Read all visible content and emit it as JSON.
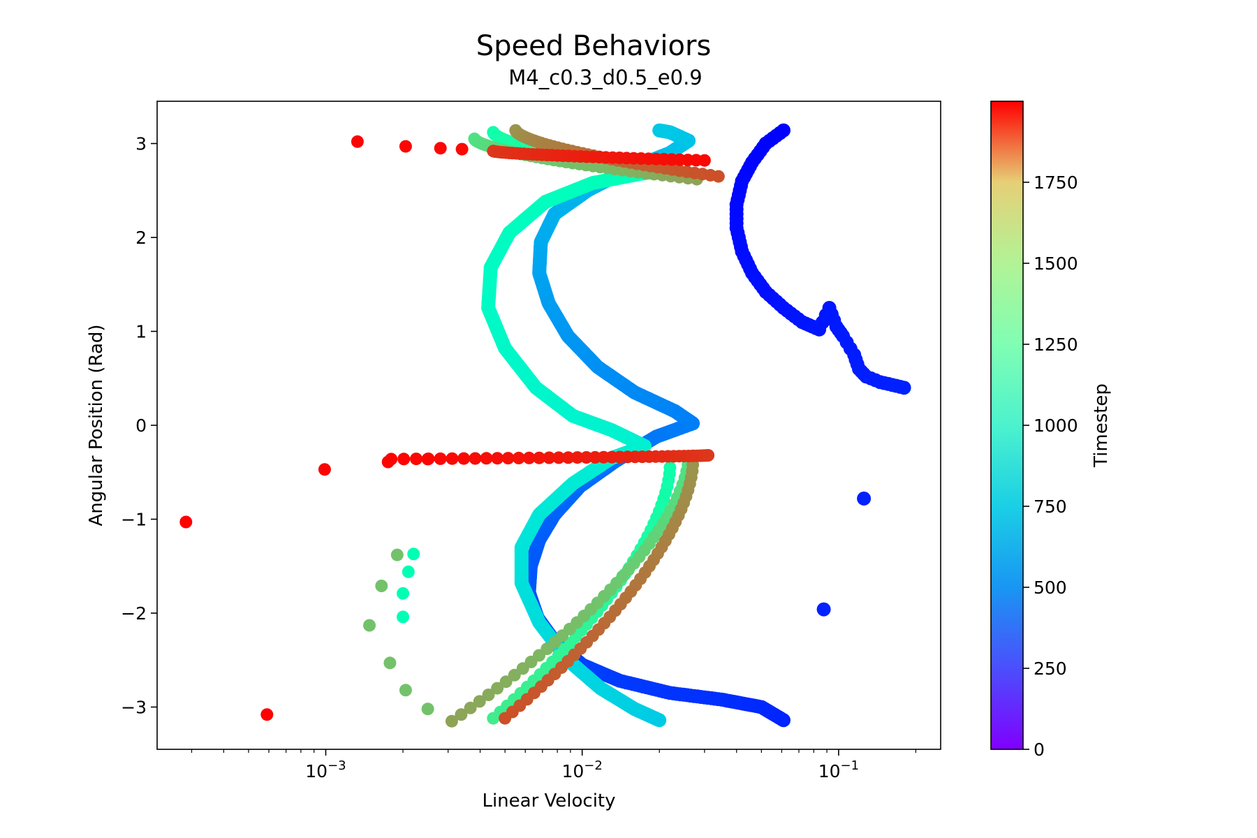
{
  "chart_data": {
    "type": "scatter",
    "title": "Speed Behaviors",
    "subtitle": "M4_c0.3_d0.5_e0.9",
    "xlabel": "Linear Velocity",
    "ylabel": "Angular Position (Rad)",
    "xscale": "log",
    "xlim": [
      0.00022,
      0.25
    ],
    "ylim": [
      -3.45,
      3.45
    ],
    "x_ticks": [
      {
        "value": 0.001,
        "base": "10",
        "exp": "−3"
      },
      {
        "value": 0.01,
        "base": "10",
        "exp": "−2"
      },
      {
        "value": 0.1,
        "base": "10",
        "exp": "−1"
      }
    ],
    "y_ticks": [
      {
        "value": -3,
        "label": "−3"
      },
      {
        "value": -2,
        "label": "−2"
      },
      {
        "value": -1,
        "label": "−1"
      },
      {
        "value": 0,
        "label": "0"
      },
      {
        "value": 1,
        "label": "1"
      },
      {
        "value": 2,
        "label": "2"
      },
      {
        "value": 3,
        "label": "3"
      }
    ],
    "grid": false,
    "colorbar": {
      "label": "Timestep",
      "colormap": "rainbow",
      "range": [
        0,
        2000
      ],
      "ticks": [
        {
          "value": 0,
          "label": "0"
        },
        {
          "value": 250,
          "label": "250"
        },
        {
          "value": 500,
          "label": "500"
        },
        {
          "value": 750,
          "label": "750"
        },
        {
          "value": 1000,
          "label": "1000"
        },
        {
          "value": 1250,
          "label": "1250"
        },
        {
          "value": 1500,
          "label": "1500"
        },
        {
          "value": 1750,
          "label": "1750"
        }
      ]
    },
    "trajectory_keypoints": [
      {
        "t": 0,
        "x": 0.061,
        "y": 3.14
      },
      {
        "t": 5,
        "x": 0.052,
        "y": 3.0
      },
      {
        "t": 10,
        "x": 0.046,
        "y": 2.8
      },
      {
        "t": 15,
        "x": 0.042,
        "y": 2.6
      },
      {
        "t": 20,
        "x": 0.04,
        "y": 2.35
      },
      {
        "t": 25,
        "x": 0.04,
        "y": 2.1
      },
      {
        "t": 30,
        "x": 0.042,
        "y": 1.85
      },
      {
        "t": 35,
        "x": 0.046,
        "y": 1.62
      },
      {
        "t": 40,
        "x": 0.052,
        "y": 1.42
      },
      {
        "t": 45,
        "x": 0.061,
        "y": 1.25
      },
      {
        "t": 50,
        "x": 0.072,
        "y": 1.1
      },
      {
        "t": 55,
        "x": 0.084,
        "y": 1.02
      },
      {
        "t": 58,
        "x": 0.092,
        "y": 1.25
      },
      {
        "t": 61,
        "x": 0.098,
        "y": 1.05
      },
      {
        "t": 64,
        "x": 0.104,
        "y": 0.95
      },
      {
        "t": 67,
        "x": 0.115,
        "y": 0.75
      },
      {
        "t": 70,
        "x": 0.12,
        "y": 0.6
      },
      {
        "t": 73,
        "x": 0.128,
        "y": 0.52
      },
      {
        "t": 76,
        "x": 0.145,
        "y": 0.46
      },
      {
        "t": 79,
        "x": 0.162,
        "y": 0.43
      },
      {
        "t": 82,
        "x": 0.18,
        "y": 0.4
      },
      {
        "t": 85,
        "x": 0.061,
        "y": -3.14
      },
      {
        "t": 100,
        "x": 0.05,
        "y": -3.0
      },
      {
        "t": 115,
        "x": 0.035,
        "y": -2.92
      },
      {
        "t": 130,
        "x": 0.022,
        "y": -2.85
      },
      {
        "t": 145,
        "x": 0.014,
        "y": -2.72
      },
      {
        "t": 160,
        "x": 0.01,
        "y": -2.55
      },
      {
        "t": 175,
        "x": 0.0078,
        "y": -2.3
      },
      {
        "t": 190,
        "x": 0.0067,
        "y": -2.05
      },
      {
        "t": 205,
        "x": 0.0062,
        "y": -1.78
      },
      {
        "t": 220,
        "x": 0.0063,
        "y": -1.5
      },
      {
        "t": 235,
        "x": 0.0068,
        "y": -1.22
      },
      {
        "t": 250,
        "x": 0.0078,
        "y": -0.95
      },
      {
        "t": 270,
        "x": 0.0098,
        "y": -0.65
      },
      {
        "t": 290,
        "x": 0.0135,
        "y": -0.38
      },
      {
        "t": 310,
        "x": 0.0195,
        "y": -0.12
      },
      {
        "t": 325,
        "x": 0.027,
        "y": 0.02
      },
      {
        "t": 340,
        "x": 0.023,
        "y": 0.15
      },
      {
        "t": 360,
        "x": 0.016,
        "y": 0.35
      },
      {
        "t": 380,
        "x": 0.0115,
        "y": 0.62
      },
      {
        "t": 400,
        "x": 0.0088,
        "y": 0.95
      },
      {
        "t": 420,
        "x": 0.0074,
        "y": 1.3
      },
      {
        "t": 440,
        "x": 0.0068,
        "y": 1.62
      },
      {
        "t": 460,
        "x": 0.0069,
        "y": 1.95
      },
      {
        "t": 480,
        "x": 0.0078,
        "y": 2.25
      },
      {
        "t": 500,
        "x": 0.0105,
        "y": 2.5
      },
      {
        "t": 520,
        "x": 0.015,
        "y": 2.72
      },
      {
        "t": 540,
        "x": 0.022,
        "y": 2.9
      },
      {
        "t": 555,
        "x": 0.026,
        "y": 3.03
      },
      {
        "t": 570,
        "x": 0.022,
        "y": 3.12
      },
      {
        "t": 580,
        "x": 0.02,
        "y": 3.14
      },
      {
        "t": 581,
        "x": 0.02,
        "y": -3.14
      },
      {
        "t": 600,
        "x": 0.016,
        "y": -3.02
      },
      {
        "t": 620,
        "x": 0.0118,
        "y": -2.8
      },
      {
        "t": 640,
        "x": 0.0088,
        "y": -2.5
      },
      {
        "t": 660,
        "x": 0.0068,
        "y": -2.1
      },
      {
        "t": 680,
        "x": 0.0058,
        "y": -1.68
      },
      {
        "t": 700,
        "x": 0.0058,
        "y": -1.3
      },
      {
        "t": 720,
        "x": 0.0068,
        "y": -0.95
      },
      {
        "t": 740,
        "x": 0.0092,
        "y": -0.62
      },
      {
        "t": 760,
        "x": 0.013,
        "y": -0.35
      },
      {
        "t": 780,
        "x": 0.0175,
        "y": -0.22
      },
      {
        "t": 795,
        "x": 0.013,
        "y": -0.05
      },
      {
        "t": 810,
        "x": 0.0092,
        "y": 0.1
      },
      {
        "t": 830,
        "x": 0.0066,
        "y": 0.4
      },
      {
        "t": 850,
        "x": 0.005,
        "y": 0.82
      },
      {
        "t": 870,
        "x": 0.0043,
        "y": 1.25
      },
      {
        "t": 890,
        "x": 0.0044,
        "y": 1.68
      },
      {
        "t": 910,
        "x": 0.0052,
        "y": 2.05
      },
      {
        "t": 930,
        "x": 0.0072,
        "y": 2.38
      },
      {
        "t": 950,
        "x": 0.011,
        "y": 2.58
      },
      {
        "t": 970,
        "x": 0.017,
        "y": 2.68
      },
      {
        "t": 985,
        "x": 0.022,
        "y": 2.72
      }
    ],
    "late_segments": [
      {
        "t_start": 1050,
        "t_end": 1250,
        "y_start": 3.12,
        "y_end": 2.65,
        "x_start": 0.0045,
        "x_end": 0.026
      },
      {
        "t_start": 1300,
        "t_end": 1560,
        "y_start": 3.05,
        "y_end": 2.62,
        "x_start": 0.0038,
        "x_end": 0.028
      },
      {
        "t_start": 1600,
        "t_end": 1800,
        "y_start": 3.14,
        "y_end": 2.65,
        "x_start": 0.0055,
        "x_end": 0.034
      },
      {
        "t_start": 1850,
        "t_end": 1980,
        "y_start": 2.92,
        "y_end": 2.82,
        "x_start": 0.0045,
        "x_end": 0.03
      },
      {
        "t_start": 1050,
        "t_end": 1250,
        "y_start": -0.45,
        "y_end": -3.12,
        "x_start": 0.022,
        "x_end": 0.0045
      },
      {
        "t_start": 1300,
        "t_end": 1560,
        "y_start": -0.35,
        "y_end": -3.15,
        "x_start": 0.026,
        "x_end": 0.0031
      },
      {
        "t_start": 1600,
        "t_end": 1800,
        "y_start": -0.42,
        "y_end": -3.12,
        "x_start": 0.027,
        "x_end": 0.005
      },
      {
        "t_start": 1850,
        "t_end": 1995,
        "y_start": -0.32,
        "y_end": -0.36,
        "x_start": 0.031,
        "x_end": 0.0018
      }
    ],
    "sparse_points": [
      {
        "t": 1990,
        "x": 0.00133,
        "y": 3.02
      },
      {
        "t": 1985,
        "x": 0.00205,
        "y": 2.97
      },
      {
        "t": 1980,
        "x": 0.0028,
        "y": 2.95
      },
      {
        "t": 1975,
        "x": 0.0034,
        "y": 2.94
      },
      {
        "t": 1990,
        "x": 0.00099,
        "y": -0.47
      },
      {
        "t": 1990,
        "x": 0.00175,
        "y": -0.39
      },
      {
        "t": 1985,
        "x": 0.0025,
        "y": -0.36
      },
      {
        "t": 1995,
        "x": 0.000285,
        "y": -1.03
      },
      {
        "t": 1995,
        "x": 0.00059,
        "y": -3.08
      },
      {
        "t": 1450,
        "x": 0.00205,
        "y": -2.82
      },
      {
        "t": 1450,
        "x": 0.00178,
        "y": -2.53
      },
      {
        "t": 1450,
        "x": 0.00148,
        "y": -2.13
      },
      {
        "t": 1450,
        "x": 0.00165,
        "y": -1.71
      },
      {
        "t": 1450,
        "x": 0.0019,
        "y": -1.38
      },
      {
        "t": 1450,
        "x": 0.0025,
        "y": -3.02
      },
      {
        "t": 1000,
        "x": 0.0021,
        "y": -1.56
      },
      {
        "t": 1000,
        "x": 0.002,
        "y": -1.79
      },
      {
        "t": 1000,
        "x": 0.002,
        "y": -2.04
      },
      {
        "t": 1000,
        "x": 0.0022,
        "y": -1.37
      }
    ]
  }
}
